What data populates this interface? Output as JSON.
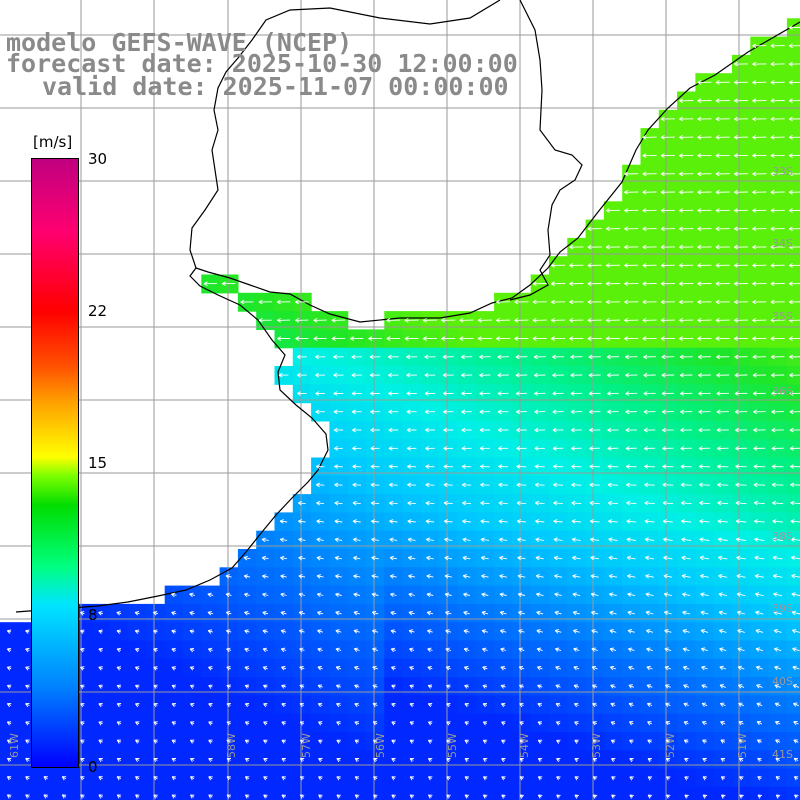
{
  "header": {
    "line1": "modelo GEFS-WAVE (NCEP)",
    "line2": "forecast date: 2025-10-30 12:00:00",
    "line3": "valid date: 2025-11-07 00:00:00"
  },
  "colorbar": {
    "unit": "[m/s]",
    "ticks": [
      "30",
      "22",
      "15",
      "8",
      "0"
    ],
    "colors": [
      "#0000ff",
      "#00e5ff",
      "#00dd00",
      "#ffff00",
      "#ff0000",
      "#c00080"
    ]
  },
  "lat_labels": [
    "33S",
    "34S",
    "35S",
    "36S",
    "38S",
    "39S",
    "40S",
    "41S"
  ],
  "lon_labels": [
    "61W",
    "58W",
    "57W",
    "56W",
    "55W",
    "54W",
    "53W",
    "52W",
    "51W"
  ],
  "wind": {
    "prevailing_direction": "from east toward west / northwest",
    "speed_range_ms": [
      2,
      12
    ]
  }
}
